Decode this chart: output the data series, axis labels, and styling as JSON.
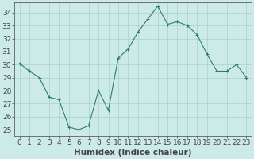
{
  "x": [
    0,
    1,
    2,
    3,
    4,
    5,
    6,
    7,
    8,
    9,
    10,
    11,
    12,
    13,
    14,
    15,
    16,
    17,
    18,
    19,
    20,
    21,
    22,
    23
  ],
  "y": [
    30.1,
    29.5,
    29.0,
    27.5,
    27.3,
    25.2,
    25.0,
    25.3,
    28.0,
    26.5,
    30.5,
    31.2,
    32.5,
    33.5,
    34.5,
    33.1,
    33.3,
    33.0,
    32.3,
    30.8,
    29.5,
    29.5,
    30.0,
    29.0
  ],
  "xlabel": "Humidex (Indice chaleur)",
  "ylabel": "",
  "title": "",
  "xlim": [
    -0.5,
    23.5
  ],
  "ylim": [
    24.5,
    34.8
  ],
  "yticks": [
    25,
    26,
    27,
    28,
    29,
    30,
    31,
    32,
    33,
    34
  ],
  "xticks": [
    0,
    1,
    2,
    3,
    4,
    5,
    6,
    7,
    8,
    9,
    10,
    11,
    12,
    13,
    14,
    15,
    16,
    17,
    18,
    19,
    20,
    21,
    22,
    23
  ],
  "line_color": "#2e7d6e",
  "marker_color": "#2e7d6e",
  "bg_color": "#cceae7",
  "grid_color": "#aacfcc",
  "axis_color": "#444444",
  "tick_label_fontsize": 6.5,
  "xlabel_fontsize": 7.5
}
